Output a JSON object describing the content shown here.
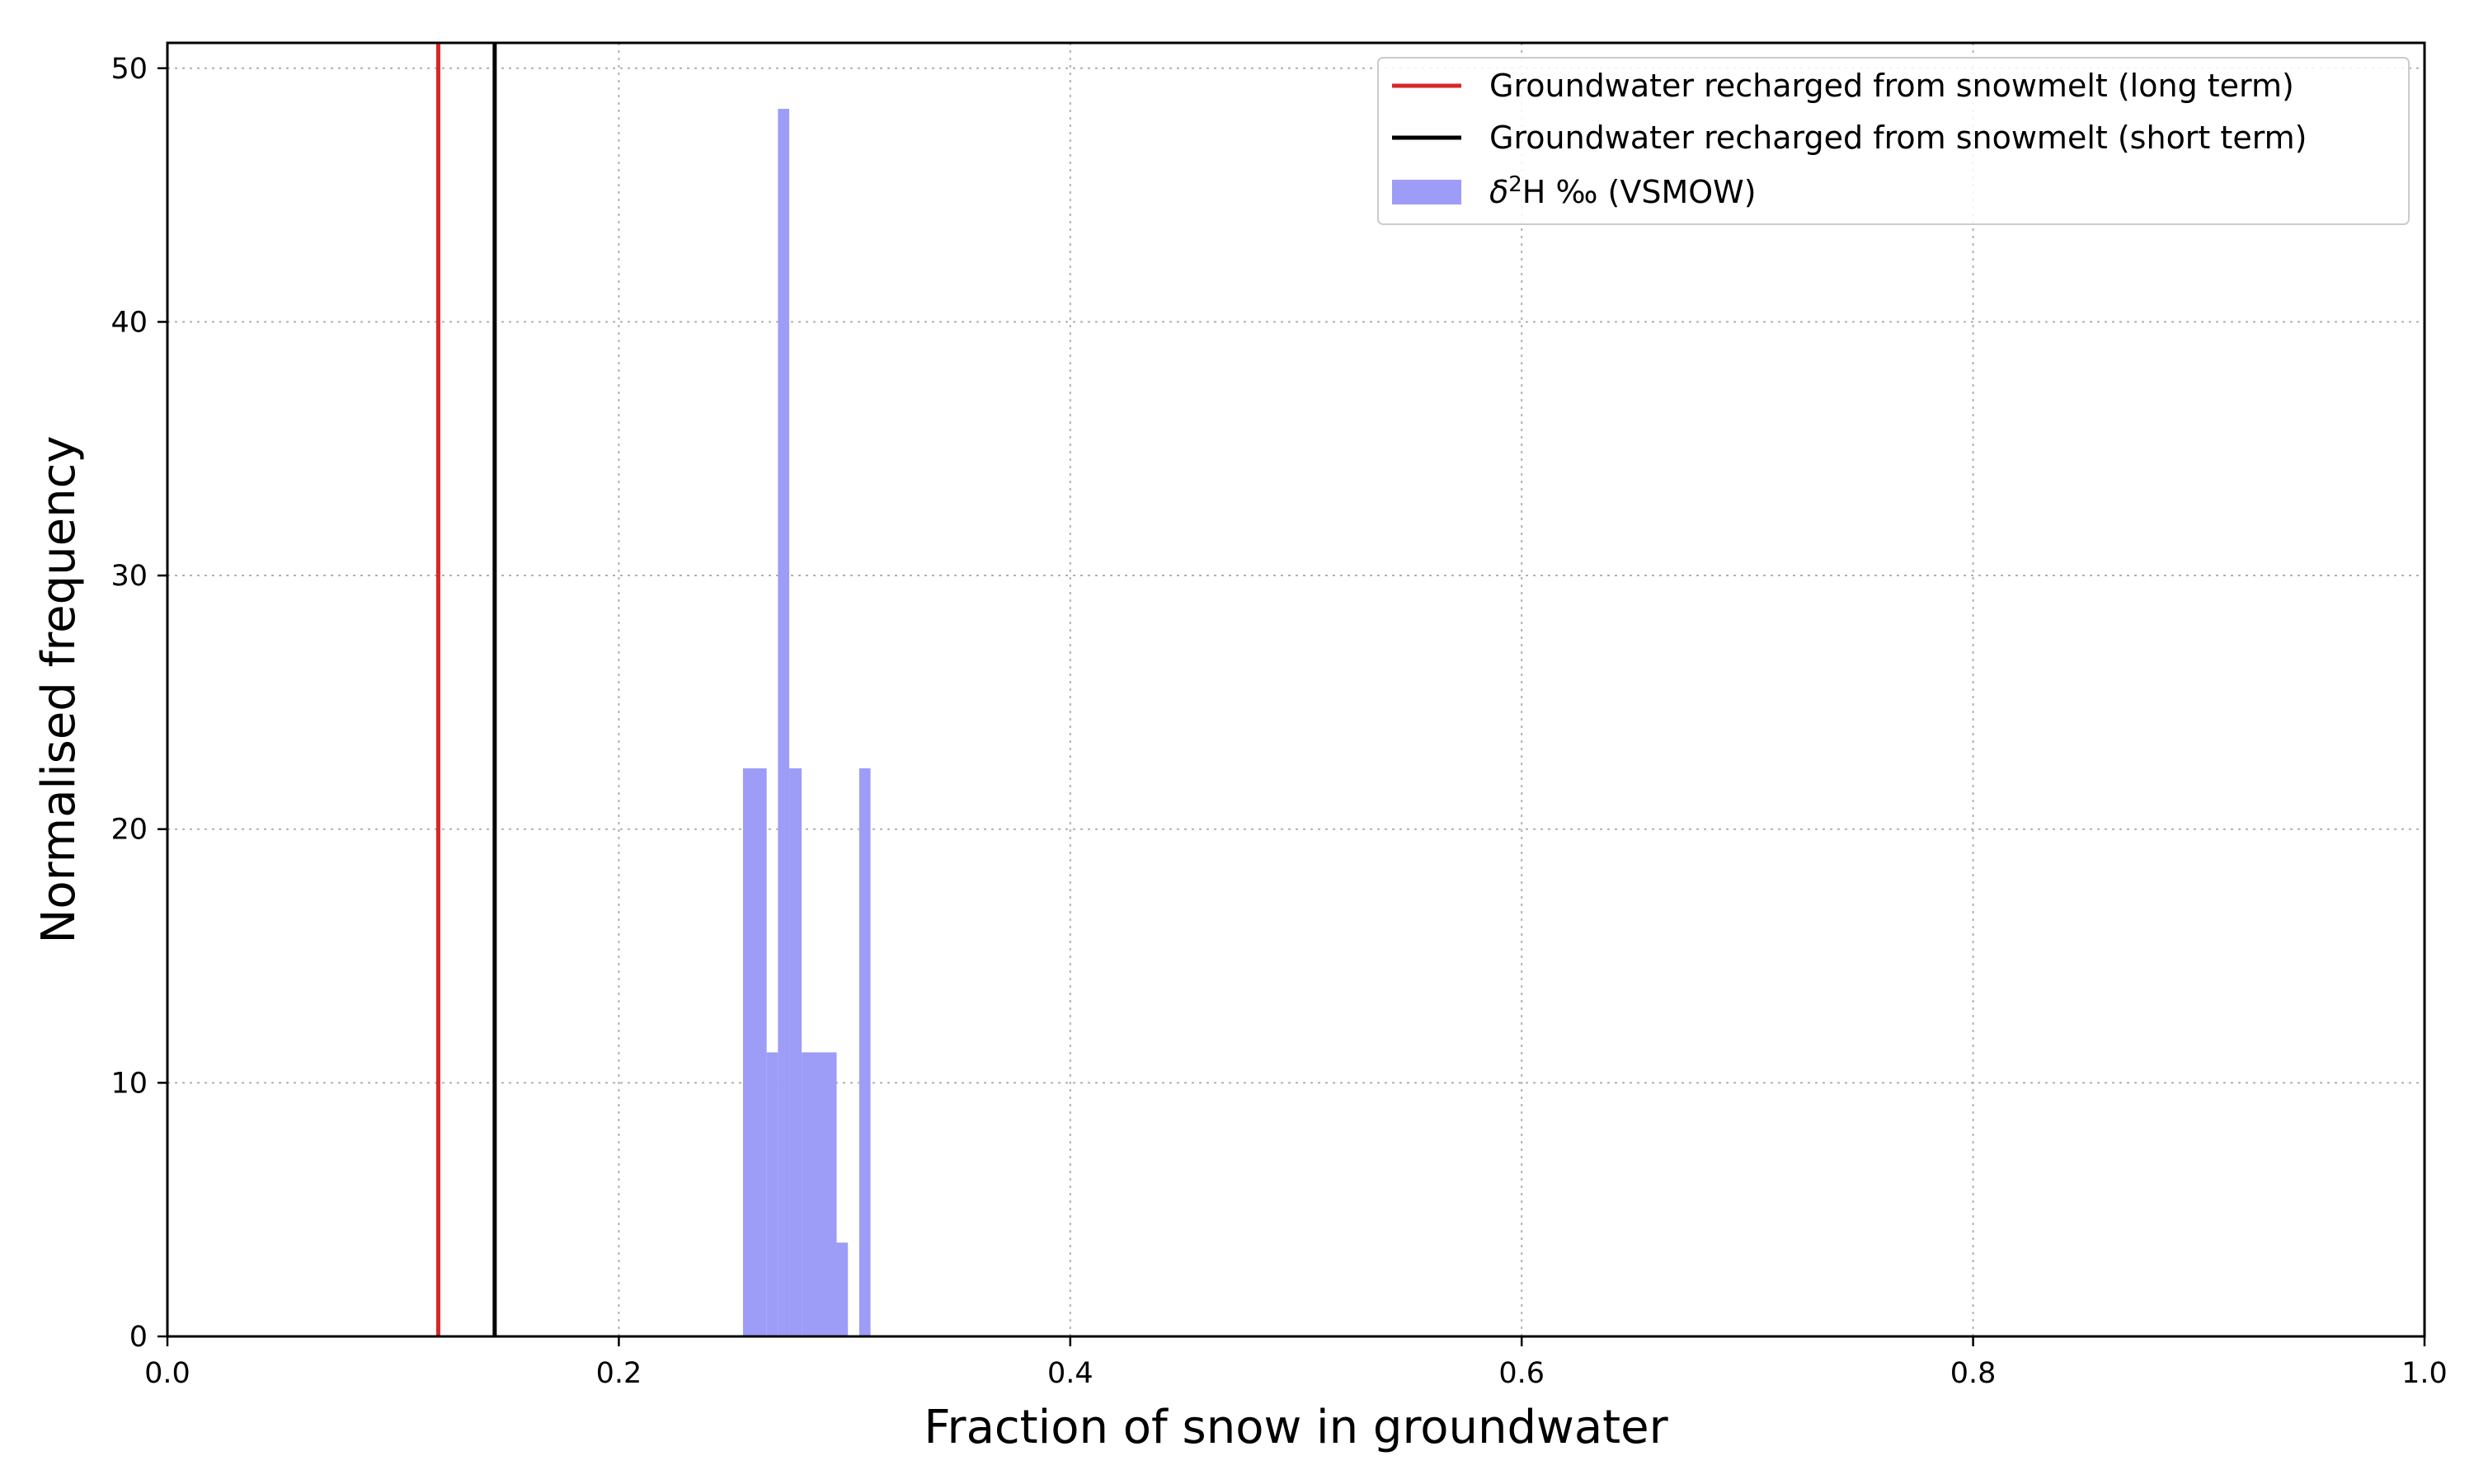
{
  "chart_data": {
    "type": "bar",
    "xlabel": "Fraction of snow in groundwater",
    "ylabel": "Normalised frequency",
    "xlim": [
      0.0,
      1.0
    ],
    "ylim": [
      0,
      51
    ],
    "xticks": [
      0.0,
      0.2,
      0.4,
      0.6,
      0.8,
      1.0
    ],
    "xtick_labels": [
      "0.0",
      "0.2",
      "0.4",
      "0.6",
      "0.8",
      "1.0"
    ],
    "yticks": [
      0,
      10,
      20,
      30,
      40,
      50
    ],
    "ytick_labels": [
      "0",
      "10",
      "20",
      "30",
      "40",
      "50"
    ],
    "grid": true,
    "legend_position": "top-right",
    "reference_lines": [
      {
        "name": "Groundwater recharged from snowmelt (long term)",
        "x": 0.12,
        "color": "#d62728"
      },
      {
        "name": "Groundwater recharged from snowmelt (short term)",
        "x": 0.145,
        "color": "#000000"
      }
    ],
    "histogram": {
      "name_prefix": "δ",
      "name_sup": "2",
      "name_suffix": "H ‰ (VSMOW)",
      "color": "#9d9df7",
      "bins": [
        {
          "x0": 0.255,
          "x1": 0.2655,
          "value": 22.4
        },
        {
          "x0": 0.2655,
          "x1": 0.2705,
          "value": 11.2
        },
        {
          "x0": 0.2705,
          "x1": 0.2755,
          "value": 48.4
        },
        {
          "x0": 0.2755,
          "x1": 0.281,
          "value": 22.4
        },
        {
          "x0": 0.281,
          "x1": 0.2965,
          "value": 11.2
        },
        {
          "x0": 0.2965,
          "x1": 0.3015,
          "value": 3.7
        },
        {
          "x0": 0.3015,
          "x1": 0.3065,
          "value": 0
        },
        {
          "x0": 0.3065,
          "x1": 0.3115,
          "value": 22.4
        }
      ]
    }
  }
}
